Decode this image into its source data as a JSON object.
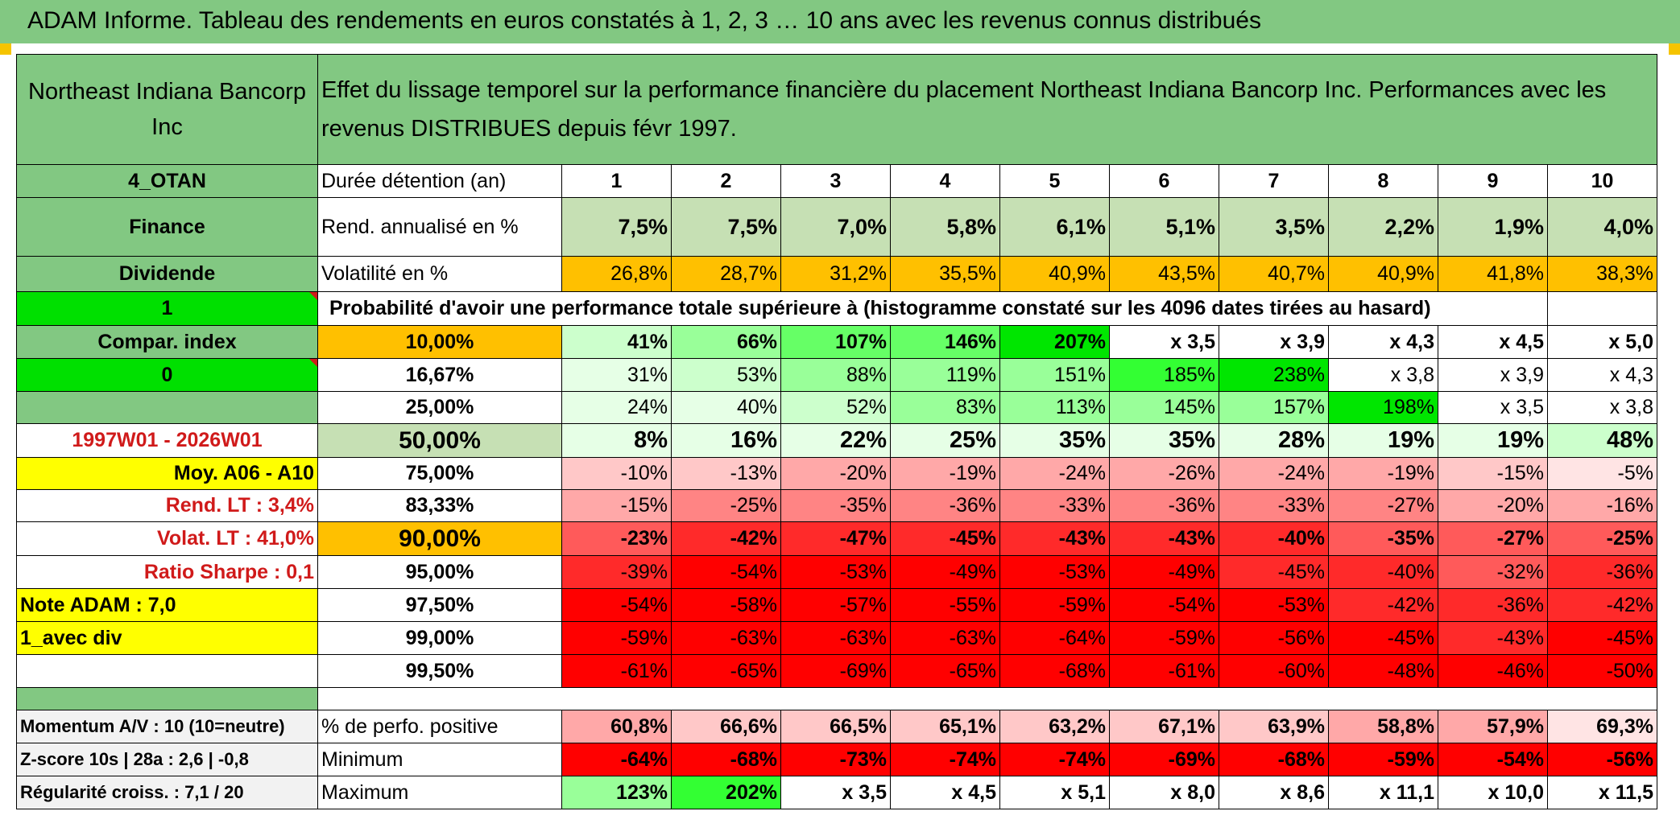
{
  "title": "ADAM Informe. Tableau des rendements en euros constatés à 1, 2, 3 … 10 ans avec les revenus connus distribués",
  "header": {
    "company": "Northeast Indiana Bancorp Inc",
    "description": "Effet du lissage temporel sur la performance financière du placement Northeast Indiana Bancorp Inc. Performances avec les revenus DISTRIBUES depuis févr 1997."
  },
  "side": {
    "code": "4_OTAN",
    "sector": "Finance",
    "type": "Dividende",
    "v1": "1",
    "compar": "Compar. index",
    "v0": "0",
    "period": "1997W01 - 2026W01",
    "moy": "Moy. A06 - A10",
    "rend_lt": "Rend. LT :   3,4%",
    "volat_lt": "Volat. LT :   41,0%",
    "sharpe": "Ratio Sharpe :    0,1",
    "note": "Note ADAM : 7,0",
    "div": "1_avec div",
    "momentum": "Momentum A/V : 10 (10=neutre)",
    "zscore": "Z-score 10s | 28a : 2,6 | -0,8",
    "regularite": "Régularité croiss. : 7,1 / 20"
  },
  "labels": {
    "duree": "Durée détention (an)",
    "rend": "Rend. annualisé en %",
    "vol": "Volatilité en %",
    "proba": "Probabilité d'avoir une performance totale supérieure à (histogramme constaté sur les 4096 dates tirées au hasard)",
    "perfo_pos": "% de perfo. positive",
    "minimum": "Minimum",
    "maximum": "Maximum"
  },
  "years": [
    "1",
    "2",
    "3",
    "4",
    "5",
    "6",
    "7",
    "8",
    "9",
    "10"
  ],
  "rend": [
    "7,5%",
    "7,5%",
    "7,0%",
    "5,8%",
    "6,1%",
    "5,1%",
    "3,5%",
    "2,2%",
    "1,9%",
    "4,0%"
  ],
  "vol": [
    "26,8%",
    "28,7%",
    "31,2%",
    "35,5%",
    "40,9%",
    "43,5%",
    "40,7%",
    "40,9%",
    "41,8%",
    "38,3%"
  ],
  "proba_rows": [
    {
      "pct": "10,00%",
      "vals": [
        "41%",
        "66%",
        "107%",
        "146%",
        "207%",
        "x 3,5",
        "x 3,9",
        "x 4,3",
        "x 4,5",
        "x 5,0"
      ]
    },
    {
      "pct": "16,67%",
      "vals": [
        "31%",
        "53%",
        "88%",
        "119%",
        "151%",
        "185%",
        "238%",
        "x 3,8",
        "x 3,9",
        "x 4,3"
      ]
    },
    {
      "pct": "25,00%",
      "vals": [
        "24%",
        "40%",
        "52%",
        "83%",
        "113%",
        "145%",
        "157%",
        "198%",
        "x 3,5",
        "x 3,8"
      ]
    },
    {
      "pct": "50,00%",
      "vals": [
        "8%",
        "16%",
        "22%",
        "25%",
        "35%",
        "35%",
        "28%",
        "19%",
        "19%",
        "48%"
      ]
    },
    {
      "pct": "75,00%",
      "vals": [
        "-10%",
        "-13%",
        "-20%",
        "-19%",
        "-24%",
        "-26%",
        "-24%",
        "-19%",
        "-15%",
        "-5%"
      ]
    },
    {
      "pct": "83,33%",
      "vals": [
        "-15%",
        "-25%",
        "-35%",
        "-36%",
        "-33%",
        "-36%",
        "-33%",
        "-27%",
        "-20%",
        "-16%"
      ]
    },
    {
      "pct": "90,00%",
      "vals": [
        "-23%",
        "-42%",
        "-47%",
        "-45%",
        "-43%",
        "-43%",
        "-40%",
        "-35%",
        "-27%",
        "-25%"
      ]
    },
    {
      "pct": "95,00%",
      "vals": [
        "-39%",
        "-54%",
        "-53%",
        "-49%",
        "-53%",
        "-49%",
        "-45%",
        "-40%",
        "-32%",
        "-36%"
      ]
    },
    {
      "pct": "97,50%",
      "vals": [
        "-54%",
        "-58%",
        "-57%",
        "-55%",
        "-59%",
        "-54%",
        "-53%",
        "-42%",
        "-36%",
        "-42%"
      ]
    },
    {
      "pct": "99,00%",
      "vals": [
        "-59%",
        "-63%",
        "-63%",
        "-63%",
        "-64%",
        "-59%",
        "-56%",
        "-45%",
        "-43%",
        "-45%"
      ]
    },
    {
      "pct": "99,50%",
      "vals": [
        "-61%",
        "-65%",
        "-69%",
        "-65%",
        "-68%",
        "-61%",
        "-60%",
        "-48%",
        "-46%",
        "-50%"
      ]
    }
  ],
  "perfo_pos": [
    "60,8%",
    "66,6%",
    "66,5%",
    "65,1%",
    "63,2%",
    "67,1%",
    "63,9%",
    "58,8%",
    "57,9%",
    "69,3%"
  ],
  "minimum": [
    "-64%",
    "-68%",
    "-73%",
    "-74%",
    "-74%",
    "-69%",
    "-68%",
    "-59%",
    "-54%",
    "-56%"
  ],
  "maximum": [
    "123%",
    "202%",
    "x 3,5",
    "x 4,5",
    "x 5,1",
    "x 8,0",
    "x 8,6",
    "x 11,1",
    "x 10,0",
    "x 11,5"
  ],
  "colors": {
    "header_green": "#82c882",
    "light_green": "#c6e0b4",
    "orange": "#ffc000",
    "yellow": "#ffff00",
    "bright_green": "#00e000",
    "red_text": "#d01a1a"
  }
}
